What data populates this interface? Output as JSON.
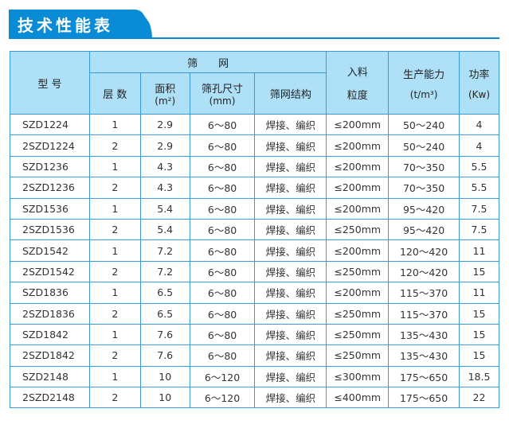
{
  "title": "技术性能表",
  "headers": {
    "model": "型 号",
    "screen": "筛　　网",
    "layers": "层 数",
    "area": "面积",
    "area_unit": "(m²)",
    "aperture": "筛孔尺寸",
    "aperture_unit": "(mm)",
    "structure": "筛网结构",
    "feed": "入料",
    "feed2": "粒度",
    "capacity": "生产能力",
    "capacity_unit": "(t/m³)",
    "power": "功率",
    "power_unit": "(Kw)"
  },
  "rows": [
    [
      "SZD1224",
      "1",
      "2.9",
      "6～80",
      "焊接、编织",
      "≤200mm",
      "50～240",
      "4"
    ],
    [
      "2SZD1224",
      "2",
      "2.9",
      "6～80",
      "焊接、编织",
      "≤200mm",
      "50～240",
      "4"
    ],
    [
      "SZD1236",
      "1",
      "4.3",
      "6～80",
      "焊接、编织",
      "≤200mm",
      "70～350",
      "5.5"
    ],
    [
      "2SZD1236",
      "2",
      "4.3",
      "6～80",
      "焊接、编织",
      "≤200mm",
      "70～350",
      "5.5"
    ],
    [
      "SZD1536",
      "1",
      "5.4",
      "6～80",
      "焊接、编织",
      "≤200mm",
      "95～420",
      "7.5"
    ],
    [
      "2SZD1536",
      "2",
      "5.4",
      "6～80",
      "焊接、编织",
      "≤250mm",
      "95～420",
      "7.5"
    ],
    [
      "SZD1542",
      "1",
      "7.2",
      "6～80",
      "焊接、编织",
      "≤200mm",
      "120～420",
      "11"
    ],
    [
      "2SZD1542",
      "2",
      "7.2",
      "6～80",
      "焊接、编织",
      "≤250mm",
      "120～420",
      "15"
    ],
    [
      "SZD1836",
      "1",
      "6.5",
      "6～80",
      "焊接、编织",
      "≤200mm",
      "115～370",
      "11"
    ],
    [
      "2SZD1836",
      "2",
      "6.5",
      "6～80",
      "焊接、编织",
      "≤250mm",
      "115～370",
      "15"
    ],
    [
      "SZD1842",
      "1",
      "7.6",
      "6～80",
      "焊接、编织",
      "≤250mm",
      "135～430",
      "15"
    ],
    [
      "2SZD1842",
      "2",
      "7.6",
      "6～80",
      "焊接、编织",
      "≤250mm",
      "135～430",
      "15"
    ],
    [
      "SZD2148",
      "1",
      "10",
      "6～120",
      "焊接、编织",
      "≤300mm",
      "175～650",
      "18.5"
    ],
    [
      "2SZD2148",
      "2",
      "10",
      "6～120",
      "焊接、编织",
      "≤400mm",
      "175～650",
      "22"
    ]
  ]
}
